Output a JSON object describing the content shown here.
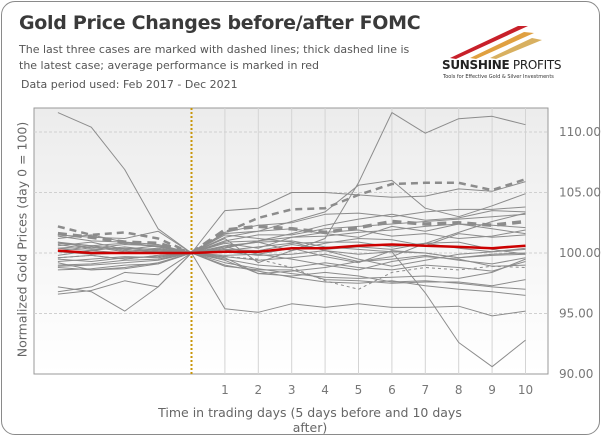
{
  "title": "Gold Price Changes before/after FOMC",
  "subtitle": "The last three cases are marked with dashed lines; thick dashed line is the latest case; average performance is marked in red",
  "data_period": "Data period used: Feb 2017 - Dec 2021",
  "logo": {
    "name_bold": "SUNSHINE",
    "name_rest": " PROFITS",
    "tagline": "Tools for Effective Gold & Silver Investments"
  },
  "colors": {
    "cases": "#8c8c8c",
    "average": "#cc0000",
    "event_line": "#c8960a"
  },
  "chart_data": {
    "type": "line",
    "title": "Gold Price Changes before/after FOMC",
    "xlabel": "Time in trading days (5 days before and 10 days after)",
    "ylabel": "Normalized Gold Prices (day 0 = 100)",
    "x": [
      -4,
      -3,
      -2,
      -1,
      0,
      1,
      2,
      3,
      4,
      5,
      6,
      7,
      8,
      9,
      10
    ],
    "x_tick_labels": [
      "1",
      "2",
      "3",
      "4",
      "5",
      "6",
      "7",
      "8",
      "9",
      "10"
    ],
    "ylim": [
      90,
      112
    ],
    "y_ticks": [
      "90.00",
      "95.00",
      "100.00",
      "105.00",
      "110.00"
    ],
    "y_tick_values": [
      90,
      95,
      100,
      105,
      110
    ],
    "event_day": 0,
    "grid": true,
    "series": [
      {
        "name": "case",
        "style": "thin",
        "values": [
          111.6,
          110.4,
          106.9,
          102.0,
          100,
          95.4,
          95.1,
          95.8,
          95.5,
          95.8,
          95.5,
          95.5,
          95.6,
          94.8,
          95.2
        ]
      },
      {
        "name": "case",
        "style": "thin",
        "values": [
          100.4,
          100.2,
          100.5,
          100.2,
          100,
          101.2,
          99.2,
          100.2,
          101.2,
          105.8,
          111.6,
          109.9,
          111.1,
          111.3,
          110.6
        ]
      },
      {
        "name": "case",
        "style": "thin",
        "values": [
          100.8,
          100.6,
          100.3,
          100.1,
          100,
          100.5,
          100.9,
          101.0,
          100.5,
          100.3,
          100.1,
          96.7,
          92.6,
          90.6,
          92.8
        ]
      },
      {
        "name": "case",
        "style": "thin",
        "values": [
          97.2,
          96.8,
          95.2,
          97.2,
          100,
          103.5,
          103.7,
          105.0,
          105.0,
          104.8,
          104.6,
          104.7,
          105.3,
          105.1,
          105.9
        ]
      },
      {
        "name": "case",
        "style": "thin",
        "values": [
          96.6,
          96.9,
          97.7,
          97.2,
          100,
          101.6,
          101.8,
          102.6,
          103.4,
          105.6,
          106.0,
          103.7,
          103.0,
          103.9,
          104.9
        ]
      },
      {
        "name": "case",
        "style": "thin",
        "values": [
          96.8,
          97.2,
          98.4,
          98.2,
          100,
          99.6,
          98.3,
          98.5,
          98.8,
          99.3,
          99.7,
          100.8,
          101.7,
          102.6,
          103.3
        ]
      },
      {
        "name": "case",
        "style": "thin",
        "values": [
          101.5,
          101.3,
          101.2,
          101.8,
          100,
          101.7,
          102.3,
          102.5,
          103.2,
          103.3,
          103.0,
          103.4,
          103.6,
          103.6,
          103.8
        ]
      },
      {
        "name": "case",
        "style": "thin",
        "values": [
          101.2,
          101.5,
          100.9,
          100.7,
          100,
          101.0,
          101.5,
          101.5,
          102.0,
          102.2,
          102.4,
          102.6,
          102.8,
          103.0,
          103.2
        ]
      },
      {
        "name": "case",
        "style": "thin",
        "values": [
          100.9,
          100.6,
          100.8,
          100.5,
          100,
          101.3,
          101.8,
          102.0,
          101.6,
          101.3,
          102.2,
          101.8,
          102.4,
          102.3,
          102.1
        ]
      },
      {
        "name": "case",
        "style": "thin",
        "values": [
          100.6,
          100.9,
          100.3,
          100.6,
          100,
          100.8,
          100.4,
          101.3,
          101.7,
          101.9,
          101.4,
          101.6,
          101.2,
          101.4,
          101.9
        ]
      },
      {
        "name": "case",
        "style": "thin",
        "values": [
          100.2,
          100.5,
          100.1,
          100.3,
          100,
          100.6,
          100.9,
          100.2,
          100.8,
          101.2,
          101.1,
          100.6,
          101.6,
          101.3,
          101.5
        ]
      },
      {
        "name": "case",
        "style": "thin",
        "values": [
          99.8,
          100.2,
          100.0,
          100.1,
          100,
          100.3,
          100.2,
          100.7,
          100.3,
          100.5,
          100.3,
          100.8,
          100.4,
          100.1,
          100.3
        ]
      },
      {
        "name": "case",
        "style": "thin",
        "values": [
          99.6,
          99.8,
          99.5,
          99.8,
          100,
          100.1,
          99.8,
          99.9,
          100.2,
          99.9,
          100.1,
          100.0,
          99.6,
          99.8,
          99.9
        ]
      },
      {
        "name": "case",
        "style": "thin",
        "values": [
          99.3,
          99.5,
          99.7,
          99.6,
          100,
          99.7,
          99.4,
          99.6,
          99.9,
          99.3,
          99.5,
          99.8,
          99.4,
          99.1,
          99.6
        ]
      },
      {
        "name": "case",
        "style": "thin",
        "values": [
          99.0,
          99.1,
          99.4,
          99.5,
          100,
          99.5,
          99.0,
          98.8,
          99.2,
          98.8,
          98.6,
          99.0,
          98.8,
          98.5,
          99.3
        ]
      },
      {
        "name": "case",
        "style": "thin",
        "values": [
          98.8,
          98.6,
          98.8,
          99.2,
          100,
          99.2,
          98.7,
          98.3,
          98.0,
          97.9,
          98.0,
          98.1,
          97.9,
          98.4,
          99.5
        ]
      },
      {
        "name": "case",
        "style": "thin",
        "values": [
          98.6,
          98.7,
          99.0,
          99.1,
          100,
          98.9,
          98.6,
          98.6,
          97.8,
          97.7,
          97.5,
          97.6,
          97.6,
          97.3,
          97.8
        ]
      },
      {
        "name": "case",
        "style": "thin",
        "values": [
          98.9,
          99.0,
          99.2,
          99.4,
          100,
          99.0,
          98.5,
          98.0,
          97.6,
          97.5,
          97.7,
          97.3,
          97.0,
          96.8,
          96.5
        ]
      },
      {
        "name": "case",
        "style": "thin",
        "values": [
          99.5,
          99.3,
          99.6,
          99.7,
          100,
          99.4,
          98.3,
          98.1,
          98.4,
          98.1,
          97.6,
          97.7,
          97.5,
          97.2,
          97.0
        ]
      },
      {
        "name": "case",
        "style": "thin",
        "values": [
          100.4,
          100.6,
          100.2,
          100.4,
          100,
          100.5,
          99.9,
          100.4,
          99.7,
          99.2,
          100.2,
          100.0,
          99.6,
          99.9,
          100.0
        ]
      },
      {
        "name": "case",
        "style": "thin",
        "values": [
          100.9,
          100.4,
          100.7,
          100.6,
          100,
          100.2,
          100.5,
          100.8,
          100.9,
          100.9,
          100.5,
          100.8,
          100.9,
          100.3,
          99.9
        ]
      },
      {
        "name": "case",
        "style": "thin",
        "values": [
          101.4,
          101.0,
          100.9,
          100.5,
          100,
          100.9,
          101.0,
          101.3,
          101.4,
          101.7,
          101.9,
          102.2,
          102.4,
          102.0,
          101.6
        ]
      },
      {
        "name": "case",
        "style": "thin",
        "values": [
          100.7,
          100.3,
          100.4,
          100.3,
          100,
          101.5,
          101.2,
          100.9,
          100.2,
          99.5,
          98.9,
          99.4,
          99.9,
          100.1,
          100.4
        ]
      },
      {
        "name": "case",
        "style": "thin",
        "values": [
          99.2,
          98.6,
          98.7,
          99.1,
          100,
          99.8,
          99.9,
          99.5,
          99.0,
          98.6,
          99.3,
          99.7,
          99.5,
          98.9,
          99.0
        ]
      },
      {
        "name": "case",
        "style": "thin",
        "values": [
          100.1,
          99.9,
          100.0,
          100.2,
          100,
          100.4,
          101.0,
          101.6,
          102.3,
          102.8,
          103.2,
          102.7,
          102.9,
          103.5,
          103.4
        ]
      },
      {
        "name": "case",
        "style": "dashed-thin",
        "values": [
          99.6,
          99.8,
          99.5,
          99.8,
          100,
          99.7,
          99.5,
          98.8,
          97.7,
          97.0,
          98.4,
          98.8,
          98.6,
          98.9,
          98.8
        ]
      },
      {
        "name": "case",
        "style": "dashed-medium",
        "values": [
          102.2,
          101.5,
          101.7,
          101.2,
          100,
          101.7,
          102.9,
          103.6,
          103.7,
          104.8,
          105.7,
          105.8,
          105.8,
          105.2,
          106.1
        ]
      },
      {
        "name": "latest case",
        "style": "dashed-thick",
        "values": [
          101.6,
          101.3,
          100.9,
          100.8,
          100,
          101.9,
          102.2,
          102.0,
          101.7,
          102.1,
          102.6,
          102.4,
          102.5,
          102.3,
          102.6
        ]
      },
      {
        "name": "average",
        "style": "average",
        "values": [
          100.2,
          100.0,
          100.0,
          100.0,
          100,
          100.1,
          100.1,
          100.4,
          100.4,
          100.6,
          100.7,
          100.6,
          100.5,
          100.4,
          100.6
        ]
      }
    ]
  }
}
